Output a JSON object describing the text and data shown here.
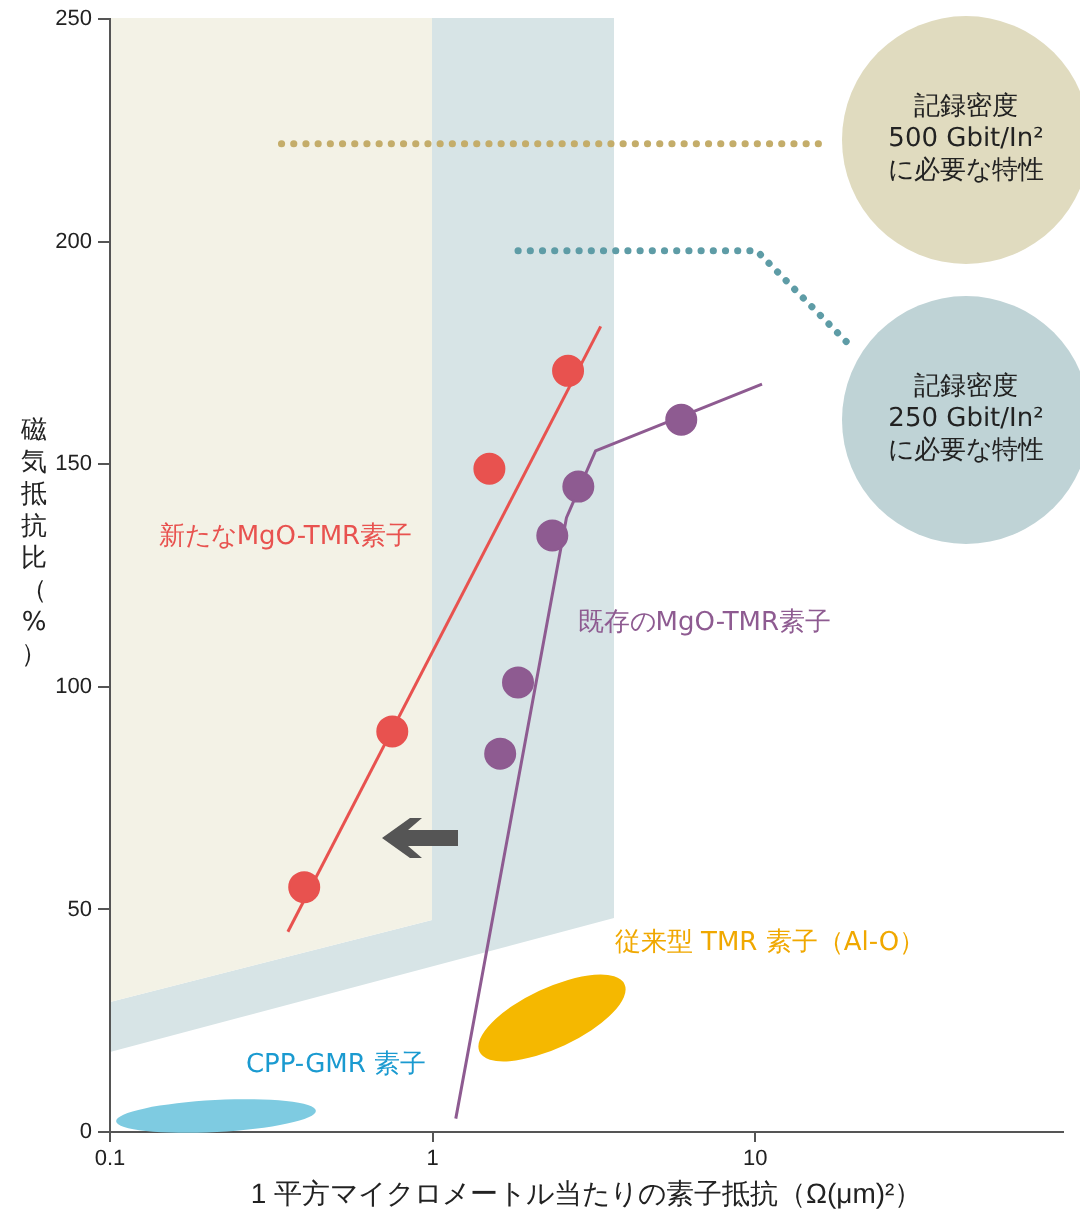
{
  "chart_data": {
    "type": "scatter",
    "xlabel": "1 平方マイクロメートル当たりの素子抵抗（Ω(μm)²）",
    "ylabel": "磁気抵抗比（%）",
    "log": "x",
    "xlim": [
      0.1,
      90
    ],
    "xticks": [
      0.1,
      1,
      10
    ],
    "ylim": [
      0,
      250
    ],
    "yticks": [
      0,
      50,
      100,
      150,
      200,
      250
    ],
    "grid": false,
    "marker": "circle",
    "series": [
      {
        "type": "line",
        "marker": "none",
        "line_style": "dotted",
        "color": "#c4ad6a",
        "x": [
          0.34,
          16.2
        ],
        "values": [
          222,
          222
        ]
      },
      {
        "type": "line",
        "marker": "none",
        "line_style": "dotted",
        "color": "#5e9ca6",
        "x": [
          1.84,
          10.1,
          19.5
        ],
        "values": [
          198,
          198,
          177
        ]
      },
      {
        "type": "line",
        "marker": "none",
        "color": "#e8524f",
        "x": [
          0.356,
          3.32
        ],
        "values": [
          45,
          181
        ]
      },
      {
        "type": "line",
        "marker": "none",
        "color": "#8e5b91",
        "x": [
          1.18,
          2.6,
          3.2,
          10.5
        ],
        "values": [
          3,
          138,
          153,
          168
        ]
      },
      {
        "name": "新たなMgO-TMR素子",
        "color": "#e8524f",
        "x": [
          0.4,
          0.75,
          1.5,
          2.63
        ],
        "values": [
          55,
          90,
          149,
          171
        ]
      },
      {
        "name": "既存のMgO-TMR素子",
        "color": "#8e5b91",
        "x": [
          1.62,
          1.84,
          2.35,
          2.83,
          5.9
        ],
        "values": [
          85,
          101,
          134,
          145,
          160
        ]
      }
    ],
    "annotations": [
      "CPP-GMR 素子",
      "従来型 TMR 素子（Al-O）",
      "記録密度\n500 Gbit/In²\nに必要な特性",
      "記録密度\n250 Gbit/In²\nに必要な特性"
    ]
  }
}
